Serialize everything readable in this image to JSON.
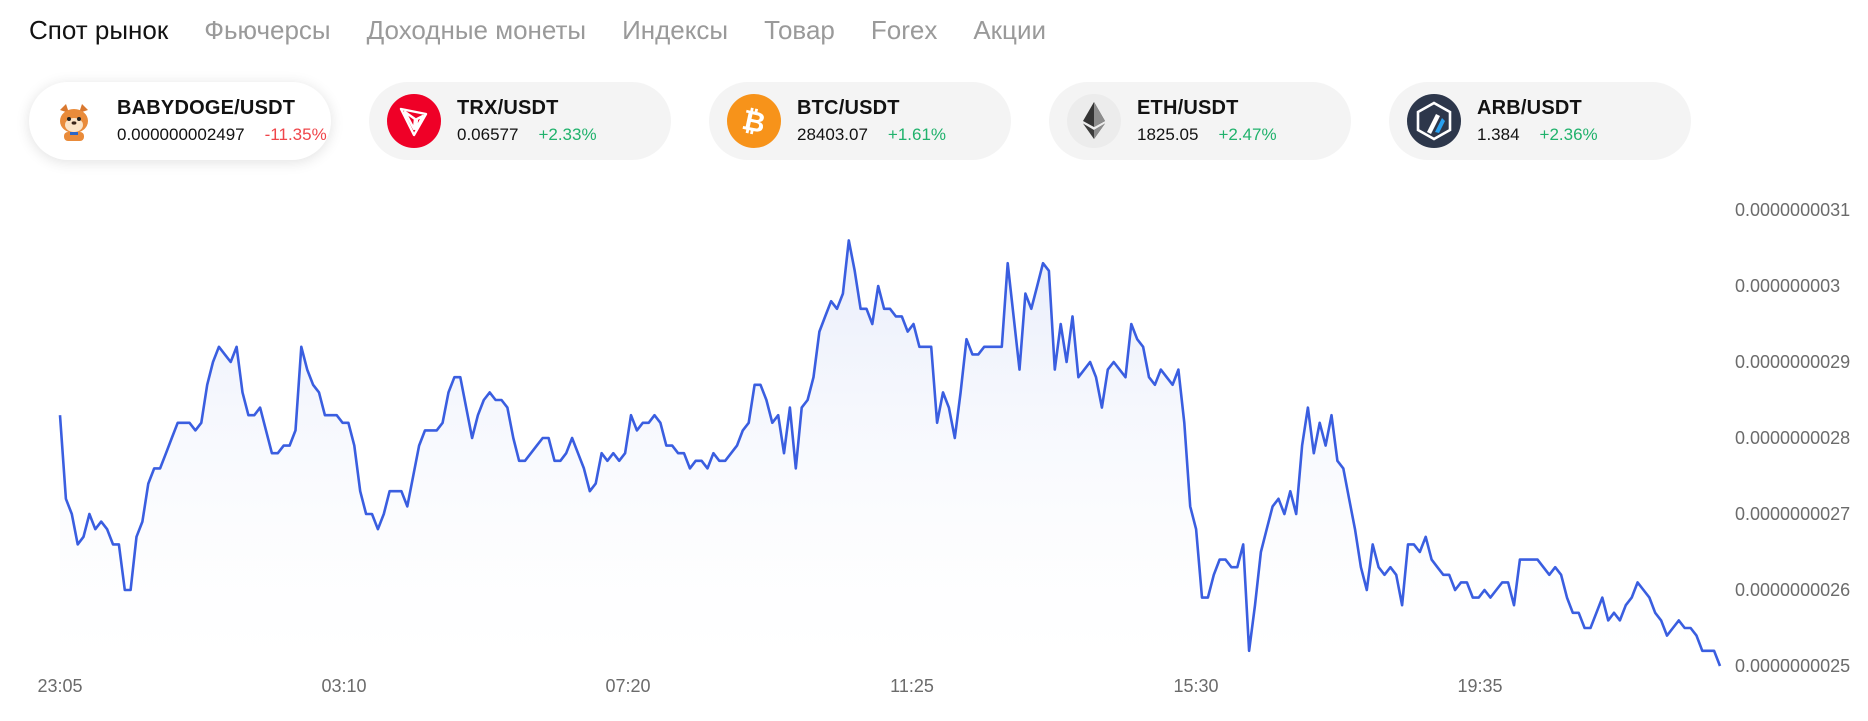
{
  "tabs": [
    {
      "label": "Спот рынок",
      "active": true
    },
    {
      "label": "Фьючерсы",
      "active": false
    },
    {
      "label": "Доходные монеты",
      "active": false
    },
    {
      "label": "Индексы",
      "active": false
    },
    {
      "label": "Товар",
      "active": false
    },
    {
      "label": "Forex",
      "active": false
    },
    {
      "label": "Акции",
      "active": false
    }
  ],
  "pairs": [
    {
      "name": "BABYDOGE/USDT",
      "price": "0.000000002497",
      "change": "-11.35%",
      "direction": "down",
      "icon": "babydoge-icon",
      "active": true
    },
    {
      "name": "TRX/USDT",
      "price": "0.06577",
      "change": "+2.33%",
      "direction": "up",
      "icon": "tron-icon",
      "active": false
    },
    {
      "name": "BTC/USDT",
      "price": "28403.07",
      "change": "+1.61%",
      "direction": "up",
      "icon": "bitcoin-icon",
      "active": false
    },
    {
      "name": "ETH/USDT",
      "price": "1825.05",
      "change": "+2.47%",
      "direction": "up",
      "icon": "ethereum-icon",
      "active": false
    },
    {
      "name": "ARB/USDT",
      "price": "1.384",
      "change": "+2.36%",
      "direction": "up",
      "icon": "arbitrum-icon",
      "active": false
    }
  ],
  "colors": {
    "line": "#3a5ee0",
    "area": "#eef1fb",
    "up": "#20b26c",
    "down": "#ef454a",
    "tron": "#ef0027",
    "bitcoin": "#f7931a",
    "arbitrum": "#2d374b"
  },
  "chart_data": {
    "type": "area",
    "x_ticks": [
      "23:05",
      "03:10",
      "07:20",
      "11:25",
      "15:30",
      "19:35"
    ],
    "y_ticks": [
      "0.0000000031",
      "0.000000003",
      "0.0000000029",
      "0.0000000028",
      "0.0000000027",
      "0.0000000026",
      "0.0000000025"
    ],
    "y_tick_values": [
      3.1e-09,
      3e-09,
      2.9e-09,
      2.8e-09,
      2.7e-09,
      2.6e-09,
      2.5e-09
    ],
    "ylim": [
      2.5e-09,
      3.1e-09
    ],
    "xlim": [
      "23:05",
      "23:45"
    ],
    "series": [
      {
        "values": [
          2.83e-09,
          2.72e-09,
          2.7e-09,
          2.66e-09,
          2.67e-09,
          2.7e-09,
          2.68e-09,
          2.69e-09,
          2.68e-09,
          2.66e-09,
          2.66e-09,
          2.6e-09,
          2.6e-09,
          2.67e-09,
          2.69e-09,
          2.74e-09,
          2.76e-09,
          2.76e-09,
          2.78e-09,
          2.8e-09,
          2.82e-09,
          2.82e-09,
          2.82e-09,
          2.81e-09,
          2.82e-09,
          2.87e-09,
          2.9e-09,
          2.92e-09,
          2.91e-09,
          2.9e-09,
          2.92e-09,
          2.86e-09,
          2.83e-09,
          2.83e-09,
          2.84e-09,
          2.81e-09,
          2.78e-09,
          2.78e-09,
          2.79e-09,
          2.79e-09,
          2.81e-09,
          2.92e-09,
          2.89e-09,
          2.87e-09,
          2.86e-09,
          2.83e-09,
          2.83e-09,
          2.83e-09,
          2.82e-09,
          2.82e-09,
          2.79e-09,
          2.73e-09,
          2.7e-09,
          2.7e-09,
          2.68e-09,
          2.7e-09,
          2.73e-09,
          2.73e-09,
          2.73e-09,
          2.71e-09,
          2.75e-09,
          2.79e-09,
          2.81e-09,
          2.81e-09,
          2.81e-09,
          2.82e-09,
          2.86e-09,
          2.88e-09,
          2.88e-09,
          2.84e-09,
          2.8e-09,
          2.83e-09,
          2.85e-09,
          2.86e-09,
          2.85e-09,
          2.85e-09,
          2.84e-09,
          2.8e-09,
          2.77e-09,
          2.77e-09,
          2.78e-09,
          2.79e-09,
          2.8e-09,
          2.8e-09,
          2.77e-09,
          2.77e-09,
          2.78e-09,
          2.8e-09,
          2.78e-09,
          2.76e-09,
          2.73e-09,
          2.74e-09,
          2.78e-09,
          2.77e-09,
          2.78e-09,
          2.77e-09,
          2.78e-09,
          2.83e-09,
          2.81e-09,
          2.82e-09,
          2.82e-09,
          2.83e-09,
          2.82e-09,
          2.79e-09,
          2.79e-09,
          2.78e-09,
          2.78e-09,
          2.76e-09,
          2.77e-09,
          2.77e-09,
          2.76e-09,
          2.78e-09,
          2.77e-09,
          2.77e-09,
          2.78e-09,
          2.79e-09,
          2.81e-09,
          2.82e-09,
          2.87e-09,
          2.87e-09,
          2.85e-09,
          2.82e-09,
          2.83e-09,
          2.78e-09,
          2.84e-09,
          2.76e-09,
          2.84e-09,
          2.85e-09,
          2.88e-09,
          2.94e-09,
          2.96e-09,
          2.98e-09,
          2.97e-09,
          2.99e-09,
          3.06e-09,
          3.02e-09,
          2.97e-09,
          2.97e-09,
          2.95e-09,
          3e-09,
          2.97e-09,
          2.97e-09,
          2.96e-09,
          2.96e-09,
          2.94e-09,
          2.95e-09,
          2.92e-09,
          2.92e-09,
          2.92e-09,
          2.82e-09,
          2.86e-09,
          2.84e-09,
          2.8e-09,
          2.86e-09,
          2.93e-09,
          2.91e-09,
          2.91e-09,
          2.92e-09,
          2.92e-09,
          2.92e-09,
          2.92e-09,
          3.03e-09,
          2.96e-09,
          2.89e-09,
          2.99e-09,
          2.97e-09,
          3e-09,
          3.03e-09,
          3.02e-09,
          2.89e-09,
          2.95e-09,
          2.9e-09,
          2.96e-09,
          2.88e-09,
          2.89e-09,
          2.9e-09,
          2.88e-09,
          2.84e-09,
          2.89e-09,
          2.9e-09,
          2.89e-09,
          2.88e-09,
          2.95e-09,
          2.93e-09,
          2.92e-09,
          2.88e-09,
          2.87e-09,
          2.89e-09,
          2.88e-09,
          2.87e-09,
          2.89e-09,
          2.82e-09,
          2.71e-09,
          2.68e-09,
          2.59e-09,
          2.59e-09,
          2.62e-09,
          2.64e-09,
          2.64e-09,
          2.63e-09,
          2.63e-09,
          2.66e-09,
          2.52e-09,
          2.58e-09,
          2.65e-09,
          2.68e-09,
          2.71e-09,
          2.72e-09,
          2.7e-09,
          2.73e-09,
          2.7e-09,
          2.79e-09,
          2.84e-09,
          2.78e-09,
          2.82e-09,
          2.79e-09,
          2.83e-09,
          2.77e-09,
          2.76e-09,
          2.72e-09,
          2.68e-09,
          2.63e-09,
          2.6e-09,
          2.66e-09,
          2.63e-09,
          2.62e-09,
          2.63e-09,
          2.62e-09,
          2.58e-09,
          2.66e-09,
          2.66e-09,
          2.65e-09,
          2.67e-09,
          2.64e-09,
          2.63e-09,
          2.62e-09,
          2.62e-09,
          2.6e-09,
          2.61e-09,
          2.61e-09,
          2.59e-09,
          2.59e-09,
          2.6e-09,
          2.59e-09,
          2.6e-09,
          2.61e-09,
          2.61e-09,
          2.58e-09,
          2.64e-09,
          2.64e-09,
          2.64e-09,
          2.64e-09,
          2.63e-09,
          2.62e-09,
          2.63e-09,
          2.62e-09,
          2.59e-09,
          2.57e-09,
          2.57e-09,
          2.55e-09,
          2.55e-09,
          2.57e-09,
          2.59e-09,
          2.56e-09,
          2.57e-09,
          2.56e-09,
          2.58e-09,
          2.59e-09,
          2.61e-09,
          2.6e-09,
          2.59e-09,
          2.57e-09,
          2.56e-09,
          2.54e-09,
          2.55e-09,
          2.56e-09,
          2.55e-09,
          2.55e-09,
          2.54e-09,
          2.52e-09,
          2.52e-09,
          2.52e-09,
          2.5e-09
        ]
      }
    ],
    "grid": false,
    "legend": "none"
  }
}
